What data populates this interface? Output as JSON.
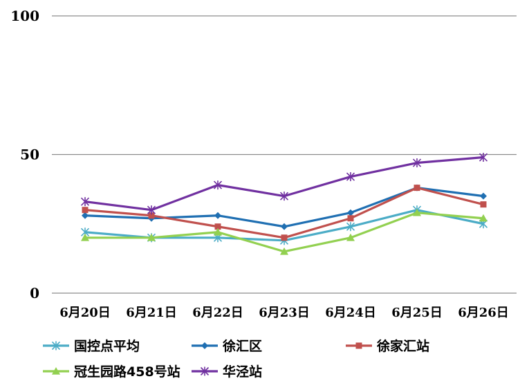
{
  "chart_data": {
    "type": "line",
    "categories": [
      "6月20日",
      "6月21日",
      "6月22日",
      "6月23日",
      "6月24日",
      "6月25日",
      "6月26日"
    ],
    "ylim": [
      0,
      100
    ],
    "yticks": [
      0,
      50,
      100
    ],
    "grid": "horizontal",
    "legend": "bottom",
    "series": [
      {
        "name": "国控点平均",
        "color": "#4BACC6",
        "marker": "asterisk",
        "values": [
          22,
          20,
          20,
          19,
          24,
          30,
          25
        ]
      },
      {
        "name": "徐汇区",
        "color": "#1F6FB2",
        "marker": "diamond",
        "values": [
          28,
          27,
          28,
          24,
          29,
          38,
          35
        ]
      },
      {
        "name": "徐家汇站",
        "color": "#C0504D",
        "marker": "square",
        "values": [
          30,
          28,
          24,
          20,
          27,
          38,
          32
        ]
      },
      {
        "name": "冠生园路458号站",
        "color": "#92D050",
        "marker": "triangle",
        "values": [
          20,
          20,
          22,
          15,
          20,
          29,
          27
        ]
      },
      {
        "name": "华泾站",
        "color": "#7030A0",
        "marker": "asterisk",
        "values": [
          33,
          30,
          39,
          35,
          42,
          47,
          49
        ]
      }
    ]
  }
}
